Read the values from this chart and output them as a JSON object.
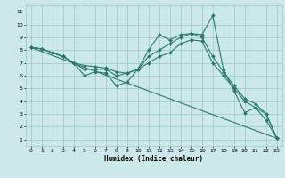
{
  "xlabel": "Humidex (Indice chaleur)",
  "bg_color": "#cce8e8",
  "grid_color": "#9ecece",
  "line_color": "#2a7a6a",
  "xlim": [
    -0.5,
    23.5
  ],
  "ylim": [
    0.5,
    11.5
  ],
  "xticks": [
    0,
    1,
    2,
    3,
    4,
    5,
    6,
    7,
    8,
    9,
    10,
    11,
    12,
    13,
    14,
    15,
    16,
    17,
    18,
    19,
    20,
    21,
    22,
    23
  ],
  "yticks": [
    1,
    2,
    3,
    4,
    5,
    6,
    7,
    8,
    9,
    10,
    11
  ],
  "lines": [
    {
      "x": [
        0,
        1,
        2,
        3,
        4,
        5,
        6,
        7,
        8,
        9,
        10,
        11,
        12,
        13,
        14,
        15,
        16,
        17,
        18,
        19,
        20,
        21,
        22,
        23
      ],
      "y": [
        8.2,
        8.1,
        7.8,
        7.5,
        7.0,
        6.0,
        6.3,
        6.2,
        5.2,
        5.5,
        6.5,
        8.0,
        9.2,
        8.8,
        9.2,
        9.3,
        9.2,
        10.7,
        6.5,
        4.8,
        3.1,
        3.5,
        2.5,
        1.1
      ],
      "marker": true
    },
    {
      "x": [
        0,
        1,
        2,
        3,
        4,
        5,
        6,
        7,
        8,
        9,
        10,
        11,
        12,
        13,
        14,
        15,
        16,
        17,
        18,
        19,
        20,
        21,
        22,
        23
      ],
      "y": [
        8.2,
        8.1,
        7.8,
        7.5,
        7.0,
        6.5,
        6.5,
        6.5,
        6.0,
        6.2,
        6.5,
        7.5,
        8.0,
        8.5,
        9.0,
        9.3,
        9.0,
        7.5,
        6.3,
        5.2,
        4.2,
        3.8,
        3.0,
        1.1
      ],
      "marker": true
    },
    {
      "x": [
        0,
        1,
        2,
        3,
        4,
        5,
        6,
        7,
        8,
        9,
        10,
        11,
        12,
        13,
        14,
        15,
        16,
        17,
        18,
        19,
        20,
        21,
        22,
        23
      ],
      "y": [
        8.2,
        8.1,
        7.8,
        7.5,
        7.0,
        6.8,
        6.7,
        6.6,
        6.3,
        6.2,
        6.5,
        7.0,
        7.5,
        7.8,
        8.5,
        8.8,
        8.7,
        7.0,
        6.0,
        5.0,
        4.0,
        3.5,
        3.0,
        1.1
      ],
      "marker": true
    },
    {
      "x": [
        0,
        23
      ],
      "y": [
        8.2,
        1.1
      ],
      "marker": false
    }
  ]
}
